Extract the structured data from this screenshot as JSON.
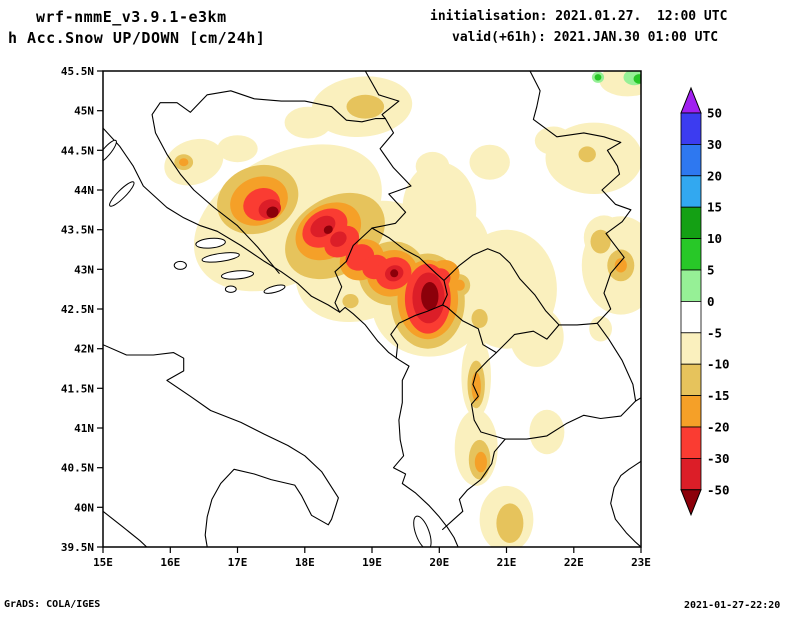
{
  "header": {
    "model": "wrf-nmmE_v3.9.1-e3km",
    "product": "h Acc.Snow UP/DOWN [cm/24h]",
    "init": "initialisation: 2021.01.27.  12:00 UTC",
    "valid": "valid(+61h): 2021.JAN.30 01:00 UTC"
  },
  "footer": {
    "credit": "GrADS: COLA/IGES",
    "timestamp": "2021-01-27-22:20"
  },
  "axes": {
    "x_ticks": [
      {
        "label": "15E",
        "lon": 15
      },
      {
        "label": "16E",
        "lon": 16
      },
      {
        "label": "17E",
        "lon": 17
      },
      {
        "label": "18E",
        "lon": 18
      },
      {
        "label": "19E",
        "lon": 19
      },
      {
        "label": "20E",
        "lon": 20
      },
      {
        "label": "21E",
        "lon": 21
      },
      {
        "label": "22E",
        "lon": 22
      },
      {
        "label": "23E",
        "lon": 23
      }
    ],
    "y_ticks": [
      {
        "label": "45.5N",
        "lat": 45.5
      },
      {
        "label": "45N",
        "lat": 45
      },
      {
        "label": "44.5N",
        "lat": 44.5
      },
      {
        "label": "44N",
        "lat": 44
      },
      {
        "label": "43.5N",
        "lat": 43.5
      },
      {
        "label": "43N",
        "lat": 43
      },
      {
        "label": "42.5N",
        "lat": 42.5
      },
      {
        "label": "42N",
        "lat": 42
      },
      {
        "label": "41.5N",
        "lat": 41.5
      },
      {
        "label": "41N",
        "lat": 41
      },
      {
        "label": "40.5N",
        "lat": 40.5
      },
      {
        "label": "40N",
        "lat": 40
      },
      {
        "label": "39.5N",
        "lat": 39.5
      }
    ]
  },
  "colorbar": {
    "tick_labels": [
      "50",
      "30",
      "20",
      "15",
      "10",
      "5",
      "0",
      "-5",
      "-10",
      "-15",
      "-20",
      "-30",
      "-50"
    ],
    "colors_top_to_bottom": [
      "#a020f0",
      "#3c3cf0",
      "#2e78f0",
      "#32a8f0",
      "#14a014",
      "#28c828",
      "#96f096",
      "#ffffff",
      "#faf0be",
      "#e6c35c",
      "#f5a028",
      "#fa3c32",
      "#dc1e28",
      "#8c000a"
    ]
  },
  "chart_data": {
    "type": "heatmap",
    "subtype": "filled_contour_map",
    "title": "wrf-nmmE_v3.9.1-e3km  Acc.Snow UP/DOWN",
    "units": "cm/24h",
    "lon_range": [
      15,
      23
    ],
    "lat_range": [
      39.5,
      45.5
    ],
    "contour_levels_cm": [
      50,
      30,
      20,
      15,
      10,
      5,
      0,
      -5,
      -10,
      -15,
      -20,
      -30,
      -50
    ],
    "band_colors": {
      "p10": "#28c828",
      "p5": "#96f096",
      "m5": "#faf0be",
      "m10": "#e6c35c",
      "m15": "#f5a028",
      "m20": "#fa3c32",
      "m30": "#dc1e28",
      "m50": "#8c000a"
    },
    "band_meaning": {
      "p10": "+5 to +10 cm (snow up)",
      "p5": "0 to +5 cm (snow up)",
      "m5": "-5 to -10 cm",
      "m10": "-10 to -15 cm",
      "m15": "-15 to -20 cm",
      "m20": "-20 to -30 cm",
      "m30": "-30 to -50 cm",
      "m50": "below -50 cm"
    },
    "features": [
      {
        "lon": 17.75,
        "lat": 43.65,
        "rx": 1.5,
        "ry": 0.8,
        "rot": -28,
        "band": "m5"
      },
      {
        "lon": 18.9,
        "lat": 43.1,
        "rx": 1.1,
        "ry": 0.7,
        "rot": -30,
        "band": "m5"
      },
      {
        "lon": 19.85,
        "lat": 42.55,
        "rx": 0.85,
        "ry": 0.65,
        "rot": 0,
        "band": "m5"
      },
      {
        "lon": 16.35,
        "lat": 44.35,
        "rx": 0.45,
        "ry": 0.28,
        "rot": -20,
        "band": "m5"
      },
      {
        "lon": 17.0,
        "lat": 44.52,
        "rx": 0.3,
        "ry": 0.17,
        "rot": 0,
        "band": "m5"
      },
      {
        "lon": 18.85,
        "lat": 45.05,
        "rx": 0.75,
        "ry": 0.38,
        "rot": -5,
        "band": "m5"
      },
      {
        "lon": 18.05,
        "lat": 44.85,
        "rx": 0.35,
        "ry": 0.2,
        "rot": 0,
        "band": "m5"
      },
      {
        "lon": 20.0,
        "lat": 43.75,
        "rx": 0.55,
        "ry": 0.6,
        "rot": 0,
        "band": "m5"
      },
      {
        "lon": 20.3,
        "lat": 43.25,
        "rx": 0.45,
        "ry": 0.5,
        "rot": 0,
        "band": "m5"
      },
      {
        "lon": 19.9,
        "lat": 44.3,
        "rx": 0.25,
        "ry": 0.18,
        "rot": 0,
        "band": "m5"
      },
      {
        "lon": 20.75,
        "lat": 44.35,
        "rx": 0.3,
        "ry": 0.22,
        "rot": 0,
        "band": "m5"
      },
      {
        "lon": 21.0,
        "lat": 42.75,
        "rx": 0.75,
        "ry": 0.75,
        "rot": 0,
        "band": "m5"
      },
      {
        "lon": 21.45,
        "lat": 42.15,
        "rx": 0.4,
        "ry": 0.38,
        "rot": 0,
        "band": "m5"
      },
      {
        "lon": 20.55,
        "lat": 41.65,
        "rx": 0.22,
        "ry": 0.52,
        "rot": 0,
        "band": "m5"
      },
      {
        "lon": 20.55,
        "lat": 40.75,
        "rx": 0.32,
        "ry": 0.48,
        "rot": 0,
        "band": "m5"
      },
      {
        "lon": 21.0,
        "lat": 39.85,
        "rx": 0.4,
        "ry": 0.42,
        "rot": 0,
        "band": "m5"
      },
      {
        "lon": 21.6,
        "lat": 40.95,
        "rx": 0.26,
        "ry": 0.28,
        "rot": 0,
        "band": "m5"
      },
      {
        "lon": 22.3,
        "lat": 44.4,
        "rx": 0.72,
        "ry": 0.45,
        "rot": 0,
        "band": "m5"
      },
      {
        "lon": 21.7,
        "lat": 44.62,
        "rx": 0.28,
        "ry": 0.18,
        "rot": 0,
        "band": "m5"
      },
      {
        "lon": 22.7,
        "lat": 43.05,
        "rx": 0.58,
        "ry": 0.62,
        "rot": 0,
        "band": "m5"
      },
      {
        "lon": 22.45,
        "lat": 43.4,
        "rx": 0.3,
        "ry": 0.28,
        "rot": 0,
        "band": "m5"
      },
      {
        "lon": 22.4,
        "lat": 42.25,
        "rx": 0.17,
        "ry": 0.16,
        "rot": 0,
        "band": "m5"
      },
      {
        "lon": 22.8,
        "lat": 45.38,
        "rx": 0.42,
        "ry": 0.2,
        "rot": 0,
        "band": "m5"
      },
      {
        "lon": 17.3,
        "lat": 43.88,
        "rx": 0.62,
        "ry": 0.42,
        "rot": -22,
        "band": "m10"
      },
      {
        "lon": 18.45,
        "lat": 43.42,
        "rx": 0.8,
        "ry": 0.48,
        "rot": -32,
        "band": "m10"
      },
      {
        "lon": 19.3,
        "lat": 42.95,
        "rx": 0.5,
        "ry": 0.4,
        "rot": -20,
        "band": "m10"
      },
      {
        "lon": 19.83,
        "lat": 42.6,
        "rx": 0.55,
        "ry": 0.6,
        "rot": 0,
        "band": "m10"
      },
      {
        "lon": 16.2,
        "lat": 44.35,
        "rx": 0.14,
        "ry": 0.1,
        "rot": 0,
        "band": "m10"
      },
      {
        "lon": 18.9,
        "lat": 45.05,
        "rx": 0.28,
        "ry": 0.15,
        "rot": 0,
        "band": "m10"
      },
      {
        "lon": 18.68,
        "lat": 42.6,
        "rx": 0.12,
        "ry": 0.09,
        "rot": 0,
        "band": "m10"
      },
      {
        "lon": 20.3,
        "lat": 42.8,
        "rx": 0.16,
        "ry": 0.14,
        "rot": 0,
        "band": "m10"
      },
      {
        "lon": 20.6,
        "lat": 42.38,
        "rx": 0.12,
        "ry": 0.12,
        "rot": 0,
        "band": "m10"
      },
      {
        "lon": 20.55,
        "lat": 41.55,
        "rx": 0.13,
        "ry": 0.3,
        "rot": 0,
        "band": "m10"
      },
      {
        "lon": 20.6,
        "lat": 40.6,
        "rx": 0.16,
        "ry": 0.25,
        "rot": 0,
        "band": "m10"
      },
      {
        "lon": 21.05,
        "lat": 39.8,
        "rx": 0.2,
        "ry": 0.25,
        "rot": 0,
        "band": "m10"
      },
      {
        "lon": 22.4,
        "lat": 43.35,
        "rx": 0.15,
        "ry": 0.15,
        "rot": 0,
        "band": "m10"
      },
      {
        "lon": 22.7,
        "lat": 43.05,
        "rx": 0.2,
        "ry": 0.2,
        "rot": 0,
        "band": "m10"
      },
      {
        "lon": 22.2,
        "lat": 44.45,
        "rx": 0.13,
        "ry": 0.1,
        "rot": 0,
        "band": "m10"
      },
      {
        "lon": 17.32,
        "lat": 43.86,
        "rx": 0.44,
        "ry": 0.3,
        "rot": -22,
        "band": "m15"
      },
      {
        "lon": 18.35,
        "lat": 43.48,
        "rx": 0.52,
        "ry": 0.33,
        "rot": -32,
        "band": "m15"
      },
      {
        "lon": 18.85,
        "lat": 43.12,
        "rx": 0.34,
        "ry": 0.25,
        "rot": -30,
        "band": "m15"
      },
      {
        "lon": 19.3,
        "lat": 42.95,
        "rx": 0.38,
        "ry": 0.29,
        "rot": -20,
        "band": "m15"
      },
      {
        "lon": 19.83,
        "lat": 42.62,
        "rx": 0.45,
        "ry": 0.5,
        "rot": 0,
        "band": "m15"
      },
      {
        "lon": 20.05,
        "lat": 42.92,
        "rx": 0.26,
        "ry": 0.19,
        "rot": -30,
        "band": "m15"
      },
      {
        "lon": 20.3,
        "lat": 42.8,
        "rx": 0.08,
        "ry": 0.07,
        "rot": 0,
        "band": "m15"
      },
      {
        "lon": 20.55,
        "lat": 41.52,
        "rx": 0.07,
        "ry": 0.18,
        "rot": 0,
        "band": "m15"
      },
      {
        "lon": 20.62,
        "lat": 40.57,
        "rx": 0.09,
        "ry": 0.13,
        "rot": 0,
        "band": "m15"
      },
      {
        "lon": 16.2,
        "lat": 44.35,
        "rx": 0.07,
        "ry": 0.05,
        "rot": 0,
        "band": "m15"
      },
      {
        "lon": 22.7,
        "lat": 43.05,
        "rx": 0.09,
        "ry": 0.09,
        "rot": 0,
        "band": "m15"
      },
      {
        "lon": 17.36,
        "lat": 43.82,
        "rx": 0.28,
        "ry": 0.2,
        "rot": -22,
        "band": "m20"
      },
      {
        "lon": 18.3,
        "lat": 43.52,
        "rx": 0.36,
        "ry": 0.22,
        "rot": -32,
        "band": "m20"
      },
      {
        "lon": 18.55,
        "lat": 43.35,
        "rx": 0.28,
        "ry": 0.18,
        "rot": -35,
        "band": "m20"
      },
      {
        "lon": 18.82,
        "lat": 43.15,
        "rx": 0.22,
        "ry": 0.16,
        "rot": -30,
        "band": "m20"
      },
      {
        "lon": 19.05,
        "lat": 43.03,
        "rx": 0.2,
        "ry": 0.15,
        "rot": -25,
        "band": "m20"
      },
      {
        "lon": 19.32,
        "lat": 42.95,
        "rx": 0.27,
        "ry": 0.2,
        "rot": -20,
        "band": "m20"
      },
      {
        "lon": 19.83,
        "lat": 42.63,
        "rx": 0.34,
        "ry": 0.44,
        "rot": 0,
        "band": "m20"
      },
      {
        "lon": 20.0,
        "lat": 42.88,
        "rx": 0.17,
        "ry": 0.13,
        "rot": -30,
        "band": "m20"
      },
      {
        "lon": 17.48,
        "lat": 43.76,
        "rx": 0.17,
        "ry": 0.12,
        "rot": -20,
        "band": "m30"
      },
      {
        "lon": 18.27,
        "lat": 43.54,
        "rx": 0.2,
        "ry": 0.12,
        "rot": -32,
        "band": "m30"
      },
      {
        "lon": 18.5,
        "lat": 43.38,
        "rx": 0.13,
        "ry": 0.09,
        "rot": -35,
        "band": "m30"
      },
      {
        "lon": 19.33,
        "lat": 42.95,
        "rx": 0.14,
        "ry": 0.1,
        "rot": -20,
        "band": "m30"
      },
      {
        "lon": 19.84,
        "lat": 42.64,
        "rx": 0.24,
        "ry": 0.32,
        "rot": 0,
        "band": "m30"
      },
      {
        "lon": 17.52,
        "lat": 43.72,
        "rx": 0.09,
        "ry": 0.07,
        "rot": -20,
        "band": "m50"
      },
      {
        "lon": 18.35,
        "lat": 43.5,
        "rx": 0.07,
        "ry": 0.05,
        "rot": -32,
        "band": "m50"
      },
      {
        "lon": 19.33,
        "lat": 42.95,
        "rx": 0.06,
        "ry": 0.05,
        "rot": 0,
        "band": "m50"
      },
      {
        "lon": 19.86,
        "lat": 42.66,
        "rx": 0.13,
        "ry": 0.18,
        "rot": 0,
        "band": "m50"
      },
      {
        "lon": 22.36,
        "lat": 45.42,
        "rx": 0.09,
        "ry": 0.07,
        "rot": 0,
        "band": "p5"
      },
      {
        "lon": 22.36,
        "lat": 45.42,
        "rx": 0.05,
        "ry": 0.04,
        "rot": 0,
        "band": "p10"
      },
      {
        "lon": 22.9,
        "lat": 45.42,
        "rx": 0.16,
        "ry": 0.1,
        "rot": 0,
        "band": "p5"
      },
      {
        "lon": 22.97,
        "lat": 45.4,
        "rx": 0.08,
        "ry": 0.06,
        "rot": 0,
        "band": "p10"
      }
    ]
  }
}
